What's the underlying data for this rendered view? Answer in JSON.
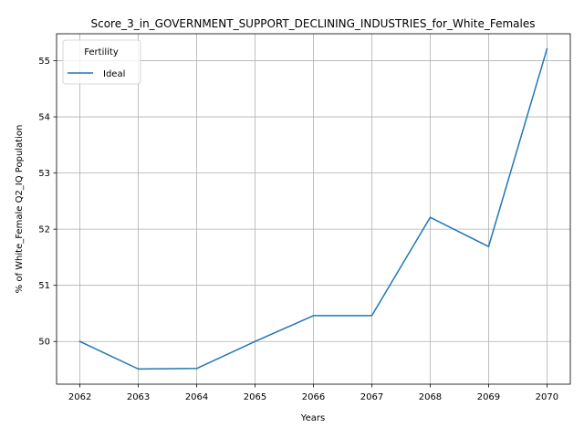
{
  "chart_data": {
    "type": "line",
    "title": "Score_3_in_GOVERNMENT_SUPPORT_DECLINING_INDUSTRIES_for_White_Females",
    "xlabel": "Years",
    "ylabel": "% of White_Female Q2_IQ Population",
    "x": [
      2062,
      2063,
      2064,
      2065,
      2066,
      2067,
      2068,
      2069,
      2070
    ],
    "x_tick_labels": [
      "2062",
      "2063",
      "2064",
      "2065",
      "2066",
      "2067",
      "2068",
      "2069",
      "2070"
    ],
    "y_ticks": [
      50,
      51,
      52,
      53,
      54,
      55
    ],
    "y_tick_labels": [
      "50",
      "51",
      "52",
      "53",
      "54",
      "55"
    ],
    "ylim": [
      49.24,
      55.48
    ],
    "grid": true,
    "legend": {
      "title": "Fertility",
      "placement": "upper-left"
    },
    "series": [
      {
        "name": "Ideal",
        "color": "#1f77b4",
        "values": [
          50.0,
          49.51,
          49.52,
          50.0,
          50.46,
          50.46,
          52.21,
          51.69,
          55.21
        ]
      }
    ]
  }
}
